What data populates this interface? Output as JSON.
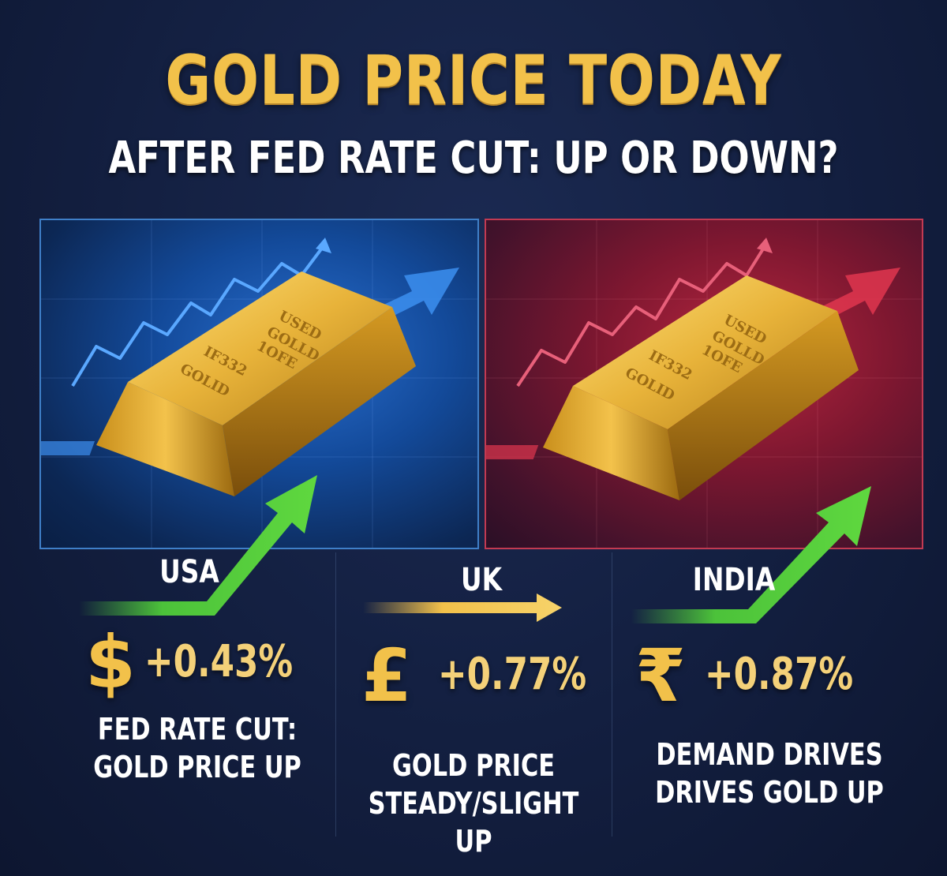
{
  "header": {
    "title": "GOLD PRICE TODAY",
    "subtitle": "AFTER FED RATE CUT: UP OR DOWN?"
  },
  "gold_bar": {
    "line1": "USED",
    "line2": "GOLLD",
    "line3": "1OFE",
    "line4": "IF332",
    "line5": "GOLID"
  },
  "markets": [
    {
      "country": "USA",
      "currency_symbol": "$",
      "change": "+0.43%",
      "caption_line1": "FED RATE CUT:",
      "caption_line2": "GOLD PRICE UP",
      "trend": "up"
    },
    {
      "country": "UK",
      "currency_symbol": "£",
      "change": "+0.77%",
      "caption_line1": "GOLD PRICE",
      "caption_line2": "STEADY/SLIGHT UP",
      "trend": "flat"
    },
    {
      "country": "INDIA",
      "currency_symbol": "₹",
      "change": "+0.87%",
      "caption_line1": "DEMAND DRIVES",
      "caption_line2": "DRIVES GOLD UP",
      "trend": "up"
    }
  ],
  "colors": {
    "gold": "#f2c14a",
    "usa_panel": "#1f5fbf",
    "india_panel": "#a0203a",
    "arrow_green": "#4cc23a",
    "background": "#131f40"
  }
}
